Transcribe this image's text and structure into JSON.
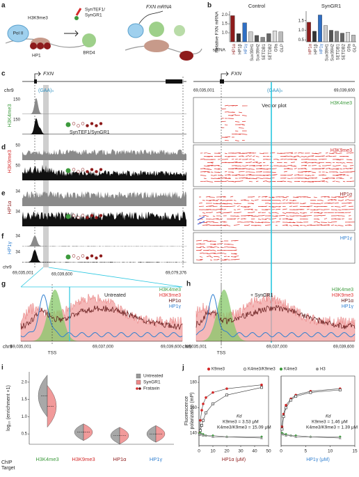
{
  "panel_labels": [
    "a",
    "b",
    "c",
    "d",
    "e",
    "f",
    "g",
    "h",
    "i",
    "j"
  ],
  "schematic": {
    "mark": "H3K9me3",
    "polymerase": "Pol II",
    "reader": "HP1",
    "ligand_1": "SynTEF1/",
    "ligand_2": "SynGR1",
    "coactivator": "BRD4",
    "product": "FXN mRNA"
  },
  "tracks": {
    "gene": "FXN",
    "chrom": "chr9",
    "repeat": "(GAA)ₙ",
    "construct": "SynTEF1/SynGR1",
    "rows": [
      {
        "label": "H3K4me3",
        "color": "#3c9a3c",
        "scale": [
          150,
          150
        ]
      },
      {
        "label": "H3K9me3",
        "color": "#d42a2a",
        "scale": [
          50,
          50
        ]
      },
      {
        "label": "HP1α",
        "color": "#8e1b1b",
        "scale": [
          34,
          34
        ]
      },
      {
        "label": "HP1γ",
        "color": "#2f7fd0",
        "scale": [
          34,
          34
        ]
      }
    ],
    "coords": [
      "69,035,001",
      "69,039,600",
      "69,079,376"
    ]
  },
  "vector": {
    "gene": "FXN",
    "coords": [
      "69,035,001",
      "69,039,600"
    ],
    "repeat": "(GAA)ₙ",
    "title": "Vector plot"
  },
  "overlay": {
    "panels": [
      "Untreated",
      "+ SynGR1"
    ],
    "legend": [
      {
        "name": "H3K4me3",
        "color": "#3c9a3c"
      },
      {
        "name": "H3K9me3",
        "color": "#e03030"
      },
      {
        "name": "HP1α",
        "color": "#5a0f0f"
      },
      {
        "name": "HP1γ",
        "color": "#2f7fd0"
      }
    ],
    "chrom": "chr9",
    "coords": [
      "69,035,001",
      "69,037,000",
      "69,039,600"
    ],
    "tss": "TSS"
  },
  "chart_data": [
    {
      "type": "bar",
      "title": "Control",
      "ylabel": "Relative FXN mRNA",
      "xlabel": "siRNA",
      "categories": [
        "HP1α",
        "HP1β",
        "HP1γ",
        "Suv39H1",
        "Suv39H2",
        "SETDB1",
        "SETDB2",
        "G9a",
        "GLP"
      ],
      "values": [
        1.95,
        0.95,
        1.55,
        1.05,
        0.85,
        0.75,
        0.95,
        1.1,
        1.05
      ],
      "colors": [
        "#8e1b1b",
        "#333333",
        "#2f6fc4",
        "#cccccc",
        "#555555",
        "#888888",
        "#666666",
        "#dddddd",
        "#bbbbbb"
      ],
      "ylim": [
        0.5,
        2.2
      ],
      "yticks": [
        {
          "value": 2,
          "label": "2.0"
        },
        1.5,
        {
          "value": 1,
          "label": "1.0"
        }
      ]
    },
    {
      "type": "bar",
      "title": "SynGR1",
      "categories": [
        "HP1α",
        "HP1β",
        "HP1γ",
        "Suv39H1",
        "Suv39H2",
        "SETDB1",
        "SETDB2",
        "G9a",
        "GLP"
      ],
      "values": [
        1.42,
        0.95,
        1.8,
        1.25,
        1.0,
        0.95,
        0.85,
        0.9,
        0.75
      ],
      "colors": [
        "#8e1b1b",
        "#333333",
        "#2f6fc4",
        "#cccccc",
        "#555555",
        "#888888",
        "#666666",
        "#dddddd",
        "#bbbbbb"
      ],
      "ylim": [
        0.4,
        2.0
      ],
      "yticks": [
        1.5,
        {
          "value": 1,
          "label": "1.0"
        },
        0.5
      ]
    },
    {
      "type": "violin",
      "ylabel": "log₁₀ (enrichment +1)",
      "xlabel_lines": [
        "ChIP",
        "Target"
      ],
      "categories": [
        "H3K4me3",
        "H3K9me3",
        "HP1α",
        "HP1γ"
      ],
      "colors": [
        "#3c9a3c",
        "#d42a2a",
        "#8e1b1b",
        "#2f7fd0"
      ],
      "series": [
        {
          "name": "Untreated",
          "color": "#999999",
          "values": [
            1.6,
            0.55,
            0.45,
            0.5
          ]
        },
        {
          "name": "SynGR1",
          "color": "#ee8888",
          "values": [
            1.3,
            0.55,
            0.45,
            0.5
          ]
        }
      ],
      "legend_extra": "Frataxin",
      "ylim": [
        0.2,
        2.3
      ],
      "yticks": [
        0.5,
        {
          "value": 1,
          "label": "1.0"
        },
        1.5,
        {
          "value": 2,
          "label": "2.0"
        }
      ]
    },
    {
      "type": "scatter",
      "ylabel_lines": [
        "Fluorescence",
        "polarization (mP)"
      ],
      "xlabel": "HP1α (μM)",
      "annotations": [
        "Kd",
        "K9me3 = 3.53 μM",
        "K4me3/K9me3 = 15.09 μM"
      ],
      "series": [
        {
          "name": "K9me3",
          "color": "#d42a2a",
          "marker": "circle",
          "x": [
            0.5,
            1,
            2,
            3,
            5,
            10,
            20,
            45
          ],
          "values": [
            140,
            150,
            158,
            163,
            168,
            172,
            175,
            178
          ]
        },
        {
          "name": "K4me3/K9me3",
          "color": "#222222",
          "marker": "square",
          "x": [
            0.5,
            1,
            2,
            3,
            5,
            10,
            20,
            45
          ],
          "values": [
            139,
            142,
            146,
            150,
            156,
            163,
            170,
            176
          ]
        },
        {
          "name": "K4me3",
          "color": "#3c9a3c",
          "marker": "diamond",
          "x": [
            0.5,
            1,
            2,
            3,
            5,
            10,
            20,
            45
          ],
          "values": [
            140,
            140,
            139,
            139,
            138,
            138,
            137,
            137
          ]
        },
        {
          "name": "H3",
          "color": "#999999",
          "marker": "triangle",
          "x": [
            0.5,
            1,
            2,
            3,
            5,
            10,
            20,
            45
          ],
          "values": [
            139,
            139,
            139,
            138,
            138,
            137,
            137,
            136
          ]
        }
      ],
      "xlim": [
        0,
        50
      ],
      "xticks": [
        0,
        10,
        20,
        30,
        40,
        50
      ],
      "ylim": [
        130,
        185
      ],
      "yticks": [
        140,
        160,
        180
      ]
    },
    {
      "type": "scatter",
      "xlabel": "HP1γ (μM)",
      "annotations": [
        "Kd",
        "K9me3 = 1.46 μM",
        "K4me3/K9me3 = 1.39 μM"
      ],
      "series": [
        {
          "color": "#d42a2a",
          "marker": "circle",
          "x": [
            0.2,
            0.5,
            1,
            2,
            3,
            6,
            12
          ],
          "values": [
            145,
            155,
            162,
            167,
            170,
            173,
            175
          ]
        },
        {
          "color": "#222222",
          "marker": "square",
          "x": [
            0.2,
            0.5,
            1,
            2,
            3,
            6,
            12
          ],
          "values": [
            143,
            153,
            160,
            166,
            169,
            172,
            174
          ]
        },
        {
          "color": "#3c9a3c",
          "marker": "diamond",
          "x": [
            0.2,
            0.5,
            1,
            2,
            3,
            6,
            12
          ],
          "values": [
            140,
            139,
            139,
            138,
            138,
            137,
            137
          ]
        },
        {
          "color": "#999999",
          "marker": "triangle",
          "x": [
            0.2,
            0.5,
            1,
            2,
            3,
            6,
            12
          ],
          "values": [
            139,
            139,
            138,
            138,
            137,
            137,
            136
          ]
        }
      ],
      "xlim": [
        0,
        15
      ],
      "xticks": [
        0,
        5,
        10,
        15
      ],
      "ylim": [
        130,
        185
      ]
    }
  ]
}
